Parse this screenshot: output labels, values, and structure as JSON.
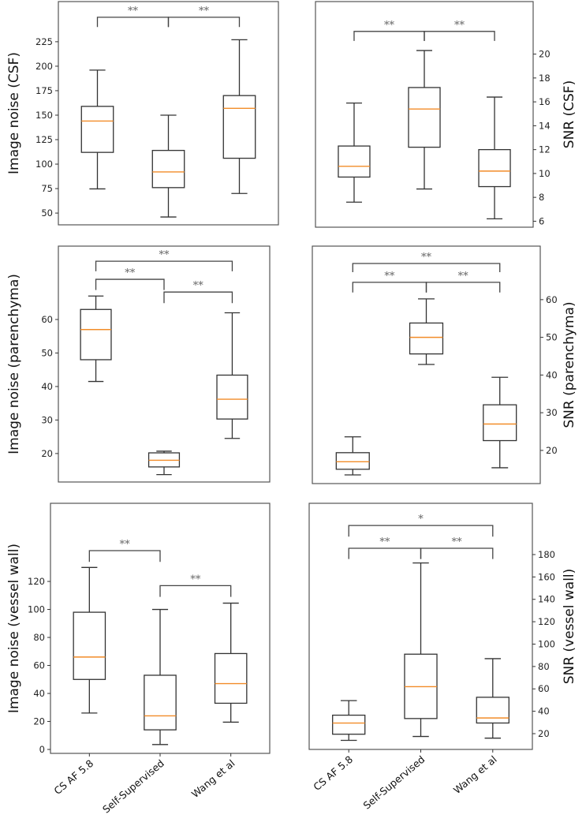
{
  "chart_data": [
    {
      "type": "box",
      "ylabel": "Image noise (CSF)",
      "axis_side": "left",
      "categories": [
        "CS AF  5.8",
        "Self-Supervised",
        "Wang et al"
      ],
      "ylim": [
        38,
        266
      ],
      "yticks": [
        50,
        75,
        100,
        125,
        150,
        175,
        200,
        225
      ],
      "show_xticklabels": false,
      "boxes": [
        {
          "whislo": 74.7,
          "q1": 112,
          "med": 144,
          "q3": 159,
          "whishi": 196
        },
        {
          "whislo": 46,
          "q1": 76,
          "med": 92,
          "q3": 114,
          "whishi": 150
        },
        {
          "whislo": 70,
          "q1": 106,
          "med": 157,
          "q3": 170,
          "whishi": 227
        }
      ],
      "brackets": [
        {
          "from": 0,
          "to": 1,
          "y": 250,
          "leg": 240,
          "label": "**"
        },
        {
          "from": 1,
          "to": 2,
          "y": 250,
          "leg": 240,
          "label": "**"
        }
      ]
    },
    {
      "type": "box",
      "ylabel": "SNR (CSF)",
      "axis_side": "right",
      "categories": [
        "CS AF  5.8",
        "Self-Supervised",
        "Wang et al"
      ],
      "ylim": [
        5.5,
        24.4
      ],
      "yticks": [
        6,
        8,
        10,
        12,
        14,
        16,
        18,
        20
      ],
      "show_xticklabels": false,
      "boxes": [
        {
          "whislo": 7.6,
          "q1": 9.7,
          "med": 10.6,
          "q3": 12.3,
          "whishi": 15.9
        },
        {
          "whislo": 8.7,
          "q1": 12.2,
          "med": 15.4,
          "q3": 17.2,
          "whishi": 20.3
        },
        {
          "whislo": 6.2,
          "q1": 8.9,
          "med": 10.2,
          "q3": 12.0,
          "whishi": 16.4
        }
      ],
      "brackets": [
        {
          "from": 0,
          "to": 1,
          "y": 21.9,
          "leg": 21.1,
          "label": "**"
        },
        {
          "from": 1,
          "to": 2,
          "y": 21.9,
          "leg": 21.1,
          "label": "**"
        }
      ]
    },
    {
      "type": "box",
      "ylabel": "Image noise (parenchyma)",
      "axis_side": "left",
      "categories": [
        "CS AF  5.8",
        "Self-Supervised",
        "Wang et al"
      ],
      "ylim": [
        11.5,
        81.9
      ],
      "yticks": [
        20,
        30,
        40,
        50,
        60
      ],
      "show_xticklabels": false,
      "boxes": [
        {
          "whislo": 41.5,
          "q1": 48,
          "med": 57,
          "q3": 63,
          "whishi": 67
        },
        {
          "whislo": 13.7,
          "q1": 16,
          "med": 18,
          "q3": 20.2,
          "whishi": 20.7
        },
        {
          "whislo": 24.5,
          "q1": 30.3,
          "med": 36.2,
          "q3": 43.4,
          "whishi": 62
        }
      ],
      "brackets": [
        {
          "from": 0,
          "to": 2,
          "y": 77.4,
          "leg": 74.4,
          "label": "**"
        },
        {
          "from": 0,
          "to": 1,
          "y": 72,
          "leg": 68.8,
          "label": "**"
        },
        {
          "from": 1,
          "to": 2,
          "y": 68.2,
          "leg": 64.9,
          "label": "**"
        }
      ]
    },
    {
      "type": "box",
      "ylabel": "SNR (parenchyma)",
      "axis_side": "right",
      "categories": [
        "CS AF  5.8",
        "Self-Supervised",
        "Wang et al"
      ],
      "ylim": [
        11.2,
        74.2
      ],
      "yticks": [
        20,
        30,
        40,
        50,
        60
      ],
      "show_xticklabels": false,
      "boxes": [
        {
          "whislo": 13.5,
          "q1": 15,
          "med": 17,
          "q3": 19.4,
          "whishi": 23.6
        },
        {
          "whislo": 42.8,
          "q1": 45.6,
          "med": 50,
          "q3": 53.8,
          "whishi": 60.2
        },
        {
          "whislo": 15.4,
          "q1": 22.6,
          "med": 27,
          "q3": 32.1,
          "whishi": 39.4
        }
      ],
      "brackets": [
        {
          "from": 0,
          "to": 2,
          "y": 69.6,
          "leg": 67.3,
          "label": "**"
        },
        {
          "from": 0,
          "to": 1,
          "y": 64.6,
          "leg": 61.9,
          "label": "**"
        },
        {
          "from": 1,
          "to": 2,
          "y": 64.6,
          "leg": 61.9,
          "label": "**"
        }
      ]
    },
    {
      "type": "box",
      "ylabel": "Image noise (vessel wall)",
      "axis_side": "left",
      "categories": [
        "CS AF  5.8",
        "Self-Supervised",
        "Wang et al"
      ],
      "ylim": [
        -2.8,
        175.8
      ],
      "yticks": [
        0,
        20,
        40,
        60,
        80,
        100,
        120
      ],
      "show_xticklabels": true,
      "boxes": [
        {
          "whislo": 26,
          "q1": 50,
          "med": 66,
          "q3": 98,
          "whishi": 130
        },
        {
          "whislo": 3.5,
          "q1": 14,
          "med": 24,
          "q3": 53,
          "whishi": 100
        },
        {
          "whislo": 19.5,
          "q1": 33,
          "med": 47,
          "q3": 68.5,
          "whishi": 104.5
        }
      ],
      "brackets": [
        {
          "from": 0,
          "to": 1,
          "y": 142,
          "leg": 134,
          "label": "**"
        },
        {
          "from": 1,
          "to": 2,
          "y": 117,
          "leg": 109,
          "label": "**"
        }
      ]
    },
    {
      "type": "box",
      "ylabel": "SNR (vessel wall)",
      "axis_side": "right",
      "categories": [
        "CS AF  5.8",
        "Self-Supervised",
        "Wang et al"
      ],
      "ylim": [
        5.9,
        225.8
      ],
      "yticks": [
        20,
        40,
        60,
        80,
        100,
        120,
        140,
        160,
        180
      ],
      "show_xticklabels": true,
      "boxes": [
        {
          "whislo": 14,
          "q1": 19.5,
          "med": 29.5,
          "q3": 36.5,
          "whishi": 49.5
        },
        {
          "whislo": 17.5,
          "q1": 33.5,
          "med": 62,
          "q3": 91,
          "whishi": 172.5
        },
        {
          "whislo": 16,
          "q1": 29.5,
          "med": 34,
          "q3": 52.5,
          "whishi": 87
        }
      ],
      "brackets": [
        {
          "from": 0,
          "to": 2,
          "y": 206,
          "leg": 196,
          "label": "*"
        },
        {
          "from": 0,
          "to": 1,
          "y": 185.6,
          "leg": 176,
          "label": "**"
        },
        {
          "from": 1,
          "to": 2,
          "y": 185.6,
          "leg": 176,
          "label": "**"
        }
      ]
    }
  ],
  "colors": {
    "median": "#f28c28",
    "box": "#333333",
    "frame": "#555555",
    "bracket": "#444444"
  }
}
